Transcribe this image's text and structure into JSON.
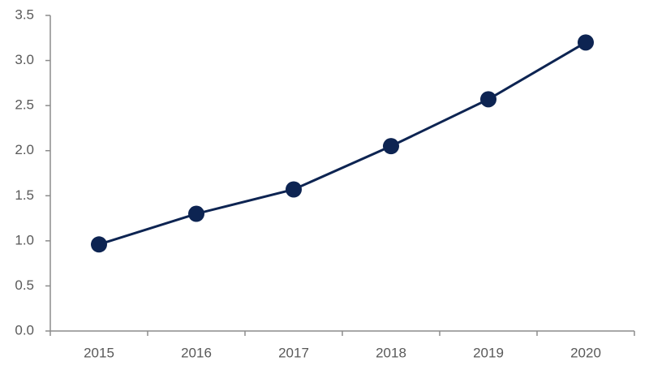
{
  "chart_data": {
    "type": "line",
    "categories": [
      "2015",
      "2016",
      "2017",
      "2018",
      "2019",
      "2020"
    ],
    "values": [
      0.96,
      1.3,
      1.57,
      2.05,
      2.57,
      3.2
    ],
    "color": "#0d2452",
    "ylim": [
      0,
      3.5
    ],
    "yticks": [
      {
        "value": 0,
        "label": "0.0"
      },
      0.5,
      {
        "value": 1,
        "label": "1.0"
      },
      1.5,
      {
        "value": 2,
        "label": "2.0"
      },
      2.5,
      {
        "value": 3,
        "label": "3.0"
      },
      3.5
    ],
    "grid": false
  }
}
